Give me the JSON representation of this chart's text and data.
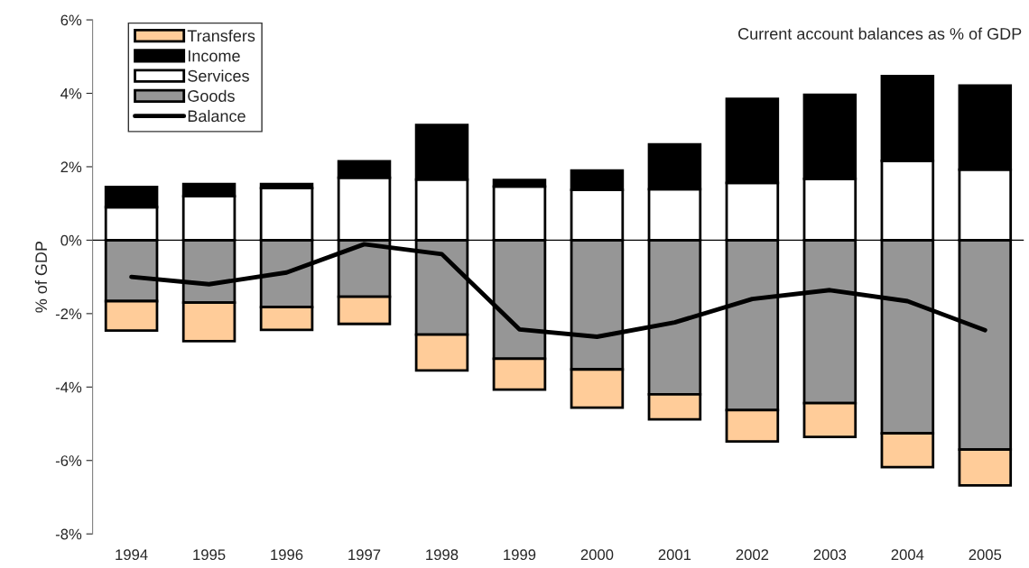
{
  "chart_data": {
    "type": "bar",
    "stacked": true,
    "title": "Current account balances as % of GDP",
    "ylabel": "% of GDP",
    "categories": [
      "1994",
      "1995",
      "1996",
      "1997",
      "1998",
      "1999",
      "2000",
      "2001",
      "2002",
      "2003",
      "2004",
      "2005"
    ],
    "series": [
      {
        "name": "Goods",
        "color": "#969696",
        "values": [
          -1.66,
          -1.7,
          -1.82,
          -1.54,
          -2.57,
          -3.23,
          -3.52,
          -4.2,
          -4.63,
          -4.44,
          -5.26,
          -5.7
        ]
      },
      {
        "name": "Services",
        "color": "#ffffff",
        "values": [
          0.9,
          1.2,
          1.42,
          1.7,
          1.65,
          1.46,
          1.37,
          1.39,
          1.56,
          1.67,
          2.16,
          1.92
        ]
      },
      {
        "name": "Income",
        "color": "#000000",
        "values": [
          0.55,
          0.33,
          0.11,
          0.45,
          1.49,
          0.18,
          0.53,
          1.22,
          2.29,
          2.29,
          2.31,
          2.29
        ]
      },
      {
        "name": "Transfers",
        "color": "#ffcc99",
        "values": [
          -0.8,
          -1.05,
          -0.62,
          -0.74,
          -0.98,
          -0.84,
          -1.04,
          -0.68,
          -0.85,
          -0.92,
          -0.92,
          -0.98
        ]
      },
      {
        "name": "Balance",
        "type": "line",
        "color": "#000000",
        "values": [
          -1.0,
          -1.2,
          -0.88,
          -0.11,
          -0.38,
          -2.43,
          -2.63,
          -2.24,
          -1.6,
          -1.36,
          -1.66,
          -2.45
        ]
      }
    ],
    "ylim": [
      -8,
      6
    ],
    "yticks": [
      {
        "value": -8,
        "label": "-8%"
      },
      {
        "value": -6,
        "label": "-6%"
      },
      {
        "value": -4,
        "label": "-4%"
      },
      {
        "value": -2,
        "label": "-2%"
      },
      {
        "value": 0,
        "label": "0%"
      },
      {
        "value": 2,
        "label": "2%"
      },
      {
        "value": 4,
        "label": "4%"
      },
      {
        "value": 6,
        "label": "6%"
      }
    ],
    "ref_lines": [
      {
        "axis": "y",
        "value": 0,
        "color": "#000000"
      }
    ],
    "legend": "top left",
    "grid": false,
    "marker": "none",
    "line_style": "solid"
  }
}
